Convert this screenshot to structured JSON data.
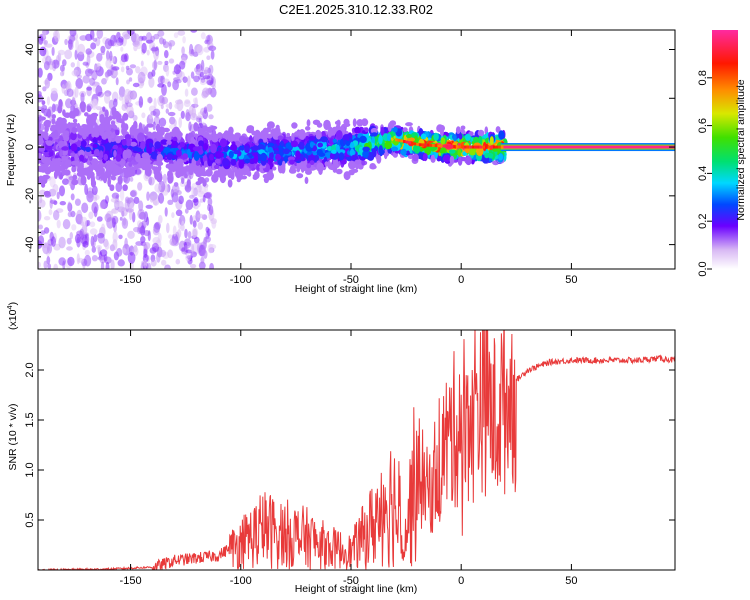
{
  "title": "C2E1.2025.310.12.33.R02",
  "chart_data": [
    {
      "type": "heatmap",
      "xlabel": "Height of straight line (km)",
      "ylabel": "Frequency (Hz)",
      "xlim": [
        -192,
        97
      ],
      "ylim": [
        -50,
        48
      ],
      "xticks": [
        -150,
        -100,
        -50,
        0,
        50
      ],
      "yticks": [
        -40,
        -20,
        0,
        20,
        40
      ],
      "tick_labels_x": [
        "-150",
        "-100",
        "-50",
        "0",
        "50"
      ],
      "tick_labels_y": [
        "-40",
        "-20",
        "0",
        "20",
        "40"
      ],
      "description_points": {
        "ridge_x": [
          -192,
          -150,
          -100,
          -50,
          -30,
          -20,
          0,
          20,
          97
        ],
        "ridge_y": [
          0,
          -1,
          -3,
          0,
          3,
          1,
          0,
          0,
          0
        ],
        "peak_amplitude": [
          0.2,
          0.25,
          0.35,
          0.4,
          0.8,
          0.95,
          0.95,
          1.0,
          1.0
        ]
      }
    },
    {
      "type": "colorbar",
      "label": "Normalized spectral amplitude",
      "range": [
        0,
        1
      ],
      "ticks": [
        0.0,
        0.2,
        0.4,
        0.6,
        0.8
      ],
      "tick_labels": [
        "0.0",
        "0.2",
        "0.4",
        "0.6",
        "0.8"
      ]
    },
    {
      "type": "line",
      "color": "#e83a3a",
      "xlabel": "Height of straight line (km)",
      "ylabel": "SNR (10 * v/v)",
      "multiplier": "(x10",
      "multiplier_exp": "4",
      "multiplier_close": ")",
      "xlim": [
        -192,
        97
      ],
      "ylim": [
        0,
        2.4
      ],
      "xticks": [
        -150,
        -100,
        -50,
        0,
        50
      ],
      "yticks": [
        0.5,
        1.0,
        1.5,
        2.0
      ],
      "tick_labels_x": [
        "-150",
        "-100",
        "-50",
        "0",
        "50"
      ],
      "tick_labels_y": [
        "0.5",
        "1.0",
        "1.5",
        "2.0"
      ],
      "x": [
        -192,
        -160,
        -140,
        -130,
        -110,
        -100,
        -90,
        -80,
        -70,
        -60,
        -50,
        -45,
        -40,
        -35,
        -30,
        -25,
        -20,
        -15,
        -10,
        -5,
        0,
        5,
        10,
        15,
        20,
        25,
        30,
        40,
        50,
        60,
        70,
        80,
        90,
        97
      ],
      "y": [
        0.0,
        0.01,
        0.03,
        0.1,
        0.15,
        0.3,
        0.45,
        0.4,
        0.35,
        0.25,
        0.2,
        0.35,
        0.5,
        0.8,
        0.75,
        0.45,
        1.1,
        0.8,
        1.2,
        1.4,
        1.6,
        1.7,
        1.9,
        1.6,
        1.8,
        1.9,
        2.0,
        2.08,
        2.1,
        2.1,
        2.1,
        2.1,
        2.12,
        2.1
      ]
    }
  ]
}
